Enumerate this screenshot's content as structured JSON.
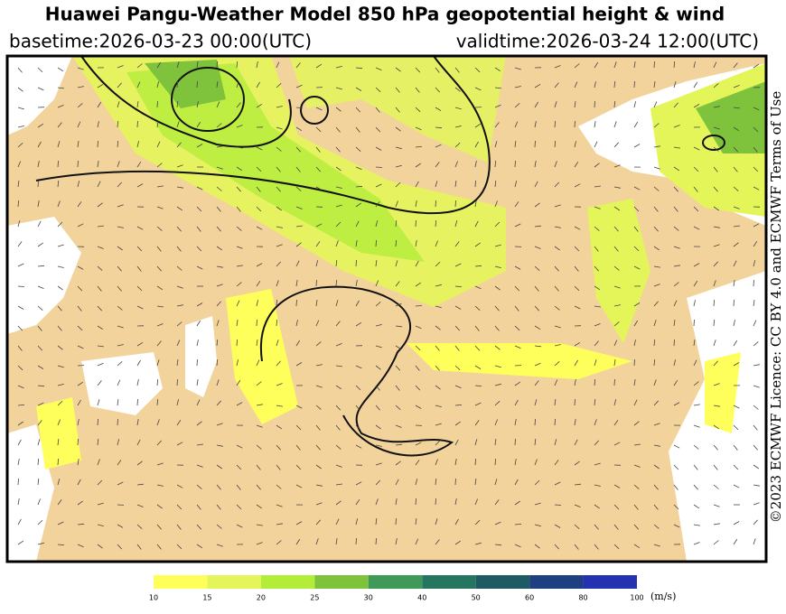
{
  "header": {
    "title": "Huawei Pangu-Weather Model 850 hPa geopotential height & wind",
    "basetime": "basetime:2026-03-23 00:00(UTC)",
    "validtime": "validtime:2026-03-24 12:00(UTC)"
  },
  "colorbar": {
    "ticks": [
      10,
      15,
      20,
      25,
      30,
      40,
      50,
      60,
      80,
      100
    ],
    "colors": [
      "#ffff5c",
      "#e4f55a",
      "#b4ec3a",
      "#7fc23c",
      "#3f9a5a",
      "#257560",
      "#1d5a64",
      "#1e3f80",
      "#2432b0"
    ],
    "unit": "(m/s)"
  },
  "credit": "©2023 ECMWF Licence: CC BY 4.0 and ECMWF Terms of Use"
}
